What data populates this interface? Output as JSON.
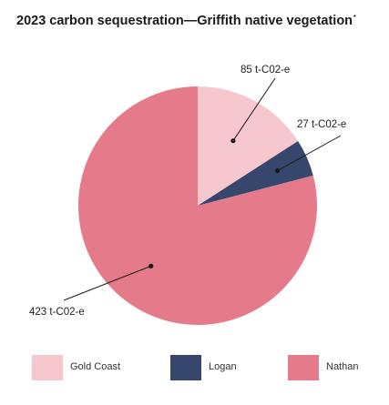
{
  "title": "2023 carbon sequestration—Griffith native vegetation",
  "title_mark": "*",
  "chart_data": {
    "type": "pie",
    "title": "2023 carbon sequestration—Griffith native vegetation",
    "unit": "t-C02-e",
    "slices": [
      {
        "name": "Gold Coast",
        "value": 85,
        "label": "85 t-C02-e",
        "color": "#f6c8cd"
      },
      {
        "name": "Logan",
        "value": 27,
        "label": "27 t-C02-e",
        "color": "#36466c"
      },
      {
        "name": "Nathan",
        "value": 423,
        "label": "423 t-C02-e",
        "color": "#e57a8b"
      }
    ],
    "legend_position": "bottom"
  },
  "legend": [
    {
      "label": "Gold Coast",
      "color": "#f6c8cd"
    },
    {
      "label": "Logan",
      "color": "#36466c"
    },
    {
      "label": "Nathan",
      "color": "#e57a8b"
    }
  ]
}
